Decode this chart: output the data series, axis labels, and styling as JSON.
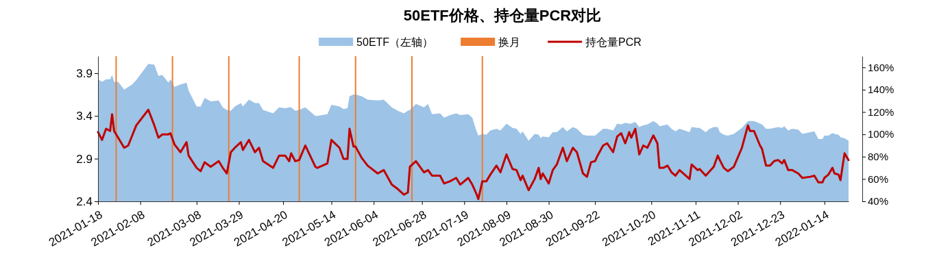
{
  "chart_data": {
    "type": "area",
    "title": "50ETF价格、持仓量PCR对比",
    "x": [
      "2021-01-18",
      "2021-01-20",
      "2021-01-22",
      "2021-01-24",
      "2021-01-25",
      "2021-01-26",
      "2021-01-28",
      "2021-01-31",
      "2021-02-02",
      "2021-02-04",
      "2021-02-06",
      "2021-02-12",
      "2021-02-15",
      "2021-02-17",
      "2021-02-19",
      "2021-02-22",
      "2021-02-23",
      "2021-02-25",
      "2021-02-28",
      "2021-03-03",
      "2021-03-04",
      "2021-03-08",
      "2021-03-10",
      "2021-03-12",
      "2021-03-15",
      "2021-03-19",
      "2021-03-21",
      "2021-03-23",
      "2021-03-25",
      "2021-03-27",
      "2021-03-30",
      "2021-03-31",
      "2021-04-03",
      "2021-04-06",
      "2021-04-08",
      "2021-04-10",
      "2021-04-15",
      "2021-04-18",
      "2021-04-21",
      "2021-04-23",
      "2021-04-24",
      "2021-04-26",
      "2021-04-28",
      "2021-05-01",
      "2021-05-06",
      "2021-05-07",
      "2021-05-12",
      "2021-05-14",
      "2021-05-18",
      "2021-05-20",
      "2021-05-22",
      "2021-05-23",
      "2021-05-25",
      "2021-05-26",
      "2021-05-29",
      "2021-06-01",
      "2021-06-06",
      "2021-06-09",
      "2021-06-13",
      "2021-06-16",
      "2021-06-19",
      "2021-06-21",
      "2021-06-22",
      "2021-06-25",
      "2021-06-29",
      "2021-07-01",
      "2021-07-03",
      "2021-07-07",
      "2021-07-09",
      "2021-07-12",
      "2021-07-15",
      "2021-07-17",
      "2021-07-21",
      "2021-07-23",
      "2021-07-25",
      "2021-07-26",
      "2021-07-28",
      "2021-07-30",
      "2021-08-01",
      "2021-08-04",
      "2021-08-06",
      "2021-08-09",
      "2021-08-12",
      "2021-08-14",
      "2021-08-16",
      "2021-08-17",
      "2021-08-20",
      "2021-08-23",
      "2021-08-25",
      "2021-08-26",
      "2021-08-27",
      "2021-08-30",
      "2021-09-01",
      "2021-09-03",
      "2021-09-06",
      "2021-09-08",
      "2021-09-11",
      "2021-09-13",
      "2021-09-16",
      "2021-09-18",
      "2021-09-20",
      "2021-09-22",
      "2021-09-23",
      "2021-09-26",
      "2021-09-28",
      "2021-10-01",
      "2021-10-03",
      "2021-10-05",
      "2021-10-07",
      "2021-10-09",
      "2021-10-10",
      "2021-10-12",
      "2021-10-14",
      "2021-10-16",
      "2021-10-18",
      "2021-10-21",
      "2021-10-23",
      "2021-10-24",
      "2021-10-26",
      "2021-10-28",
      "2021-10-30",
      "2021-11-01",
      "2021-11-03",
      "2021-11-08",
      "2021-11-09",
      "2021-11-12",
      "2021-11-13",
      "2021-11-16",
      "2021-11-18",
      "2021-11-20",
      "2021-11-22",
      "2021-11-23",
      "2021-11-25",
      "2021-11-27",
      "2021-11-30",
      "2021-12-04",
      "2021-12-07",
      "2021-12-08",
      "2021-12-10",
      "2021-12-13",
      "2021-12-14",
      "2021-12-16",
      "2021-12-18",
      "2021-12-20",
      "2021-12-22",
      "2021-12-24",
      "2021-12-25",
      "2021-12-27",
      "2021-12-29",
      "2022-01-01",
      "2022-01-03",
      "2022-01-07",
      "2022-01-09",
      "2022-01-11",
      "2022-01-13",
      "2022-01-14",
      "2022-01-16",
      "2022-01-18",
      "2022-01-19",
      "2022-01-21",
      "2022-01-22",
      "2022-01-24",
      "2022-01-26"
    ],
    "series": [
      {
        "name": "50ETF（左轴）",
        "color": "#9dc3e6",
        "values": [
          3.83,
          3.8,
          3.83,
          3.83,
          3.88,
          3.8,
          3.8,
          3.71,
          3.74,
          3.77,
          3.82,
          4.01,
          4.0,
          3.87,
          3.88,
          3.79,
          3.83,
          3.74,
          3.77,
          3.79,
          3.7,
          3.51,
          3.51,
          3.61,
          3.57,
          3.58,
          3.5,
          3.47,
          3.46,
          3.51,
          3.55,
          3.51,
          3.59,
          3.55,
          3.55,
          3.47,
          3.43,
          3.5,
          3.49,
          3.5,
          3.5,
          3.46,
          3.47,
          3.5,
          3.4,
          3.4,
          3.42,
          3.53,
          3.51,
          3.48,
          3.49,
          3.63,
          3.65,
          3.65,
          3.63,
          3.59,
          3.58,
          3.59,
          3.5,
          3.46,
          3.43,
          3.46,
          3.47,
          3.54,
          3.5,
          3.54,
          3.42,
          3.43,
          3.38,
          3.41,
          3.43,
          3.41,
          3.42,
          3.38,
          3.23,
          3.17,
          3.19,
          3.18,
          3.23,
          3.25,
          3.23,
          3.31,
          3.26,
          3.25,
          3.19,
          3.22,
          3.11,
          3.19,
          3.18,
          3.14,
          3.16,
          3.15,
          3.21,
          3.21,
          3.27,
          3.22,
          3.27,
          3.25,
          3.18,
          3.17,
          3.17,
          3.17,
          3.19,
          3.25,
          3.25,
          3.23,
          3.31,
          3.3,
          3.32,
          3.31,
          3.31,
          3.33,
          3.27,
          3.29,
          3.3,
          3.34,
          3.31,
          3.28,
          3.29,
          3.3,
          3.25,
          3.22,
          3.25,
          3.21,
          3.27,
          3.26,
          3.26,
          3.21,
          3.25,
          3.27,
          3.27,
          3.21,
          3.18,
          3.17,
          3.19,
          3.26,
          3.34,
          3.34,
          3.34,
          3.31,
          3.3,
          3.25,
          3.25,
          3.26,
          3.27,
          3.26,
          3.28,
          3.23,
          3.25,
          3.24,
          3.19,
          3.21,
          3.22,
          3.13,
          3.13,
          3.17,
          3.17,
          3.2,
          3.19,
          3.18,
          3.15,
          3.14,
          3.11
        ]
      },
      {
        "name": "持仓量PCR",
        "type": "line",
        "axis": "y2",
        "color": "#c00000",
        "values": [
          102,
          95,
          105,
          103,
          118,
          103,
          97,
          88,
          90,
          99,
          108,
          122,
          108,
          97,
          100,
          100,
          101,
          91,
          84,
          93,
          81,
          70,
          67,
          75,
          71,
          76,
          70,
          65,
          84,
          88,
          93,
          86,
          95,
          84,
          88,
          76,
          70,
          81,
          81,
          76,
          83,
          76,
          77,
          90,
          71,
          70,
          74,
          95,
          88,
          78,
          78,
          105,
          89,
          89,
          79,
          72,
          65,
          68,
          55,
          51,
          46,
          48,
          71,
          76,
          66,
          68,
          63,
          63,
          56,
          58,
          61,
          55,
          61,
          55,
          47,
          42,
          58,
          58,
          64,
          72,
          66,
          82,
          69,
          68,
          59,
          63,
          50,
          60,
          70,
          60,
          65,
          56,
          68,
          73,
          88,
          76,
          88,
          84,
          65,
          62,
          75,
          76,
          80,
          90,
          92,
          84,
          98,
          101,
          92,
          102,
          97,
          105,
          82,
          90,
          88,
          99,
          92,
          70,
          70,
          72,
          66,
          63,
          68,
          60,
          73,
          68,
          69,
          63,
          67,
          71,
          81,
          77,
          70,
          67,
          71,
          88,
          108,
          103,
          103,
          90,
          87,
          72,
          72,
          76,
          77,
          74,
          77,
          68,
          68,
          65,
          61,
          62,
          63,
          57,
          57,
          61,
          64,
          70,
          65,
          64,
          59,
          83,
          77
        ]
      }
    ],
    "xlim": [
      "2021-01-18",
      "2022-01-26"
    ],
    "xticks": [
      "2021-01-18",
      "2021-02-08",
      "2021-03-08",
      "2021-03-29",
      "2021-04-20",
      "2021-05-14",
      "2021-06-04",
      "2021-06-28",
      "2021-07-19",
      "2021-08-09",
      "2021-08-30",
      "2021-09-22",
      "2021-10-20",
      "2021-11-11",
      "2021-12-02",
      "2021-12-23",
      "2022-01-14"
    ],
    "ylim": [
      2.4,
      4.1
    ],
    "yticks": [
      2.4,
      2.9,
      3.4,
      3.9
    ],
    "y2lim": [
      40,
      170
    ],
    "y2ticks": [
      {
        "value": 40,
        "label": "40%"
      },
      {
        "value": 60,
        "label": "60%"
      },
      {
        "value": 80,
        "label": "80%"
      },
      {
        "value": 100,
        "label": "100%"
      },
      {
        "value": 120,
        "label": "120%"
      },
      {
        "value": 140,
        "label": "140%"
      },
      {
        "value": 160,
        "label": "160%"
      }
    ],
    "ref_lines": [
      {
        "axis": "x",
        "value": "2021-01-27",
        "label": "换月",
        "color": "#ed7d31"
      },
      {
        "axis": "x",
        "value": "2021-02-24",
        "color": "#ed7d31"
      },
      {
        "axis": "x",
        "value": "2021-03-24",
        "color": "#ed7d31"
      },
      {
        "axis": "x",
        "value": "2021-04-28",
        "color": "#ed7d31"
      },
      {
        "axis": "x",
        "value": "2021-05-26",
        "color": "#ed7d31"
      },
      {
        "axis": "x",
        "value": "2021-06-23",
        "color": "#ed7d31"
      },
      {
        "axis": "x",
        "value": "2021-07-28",
        "color": "#ed7d31"
      }
    ],
    "grid": false,
    "legend": "top"
  }
}
